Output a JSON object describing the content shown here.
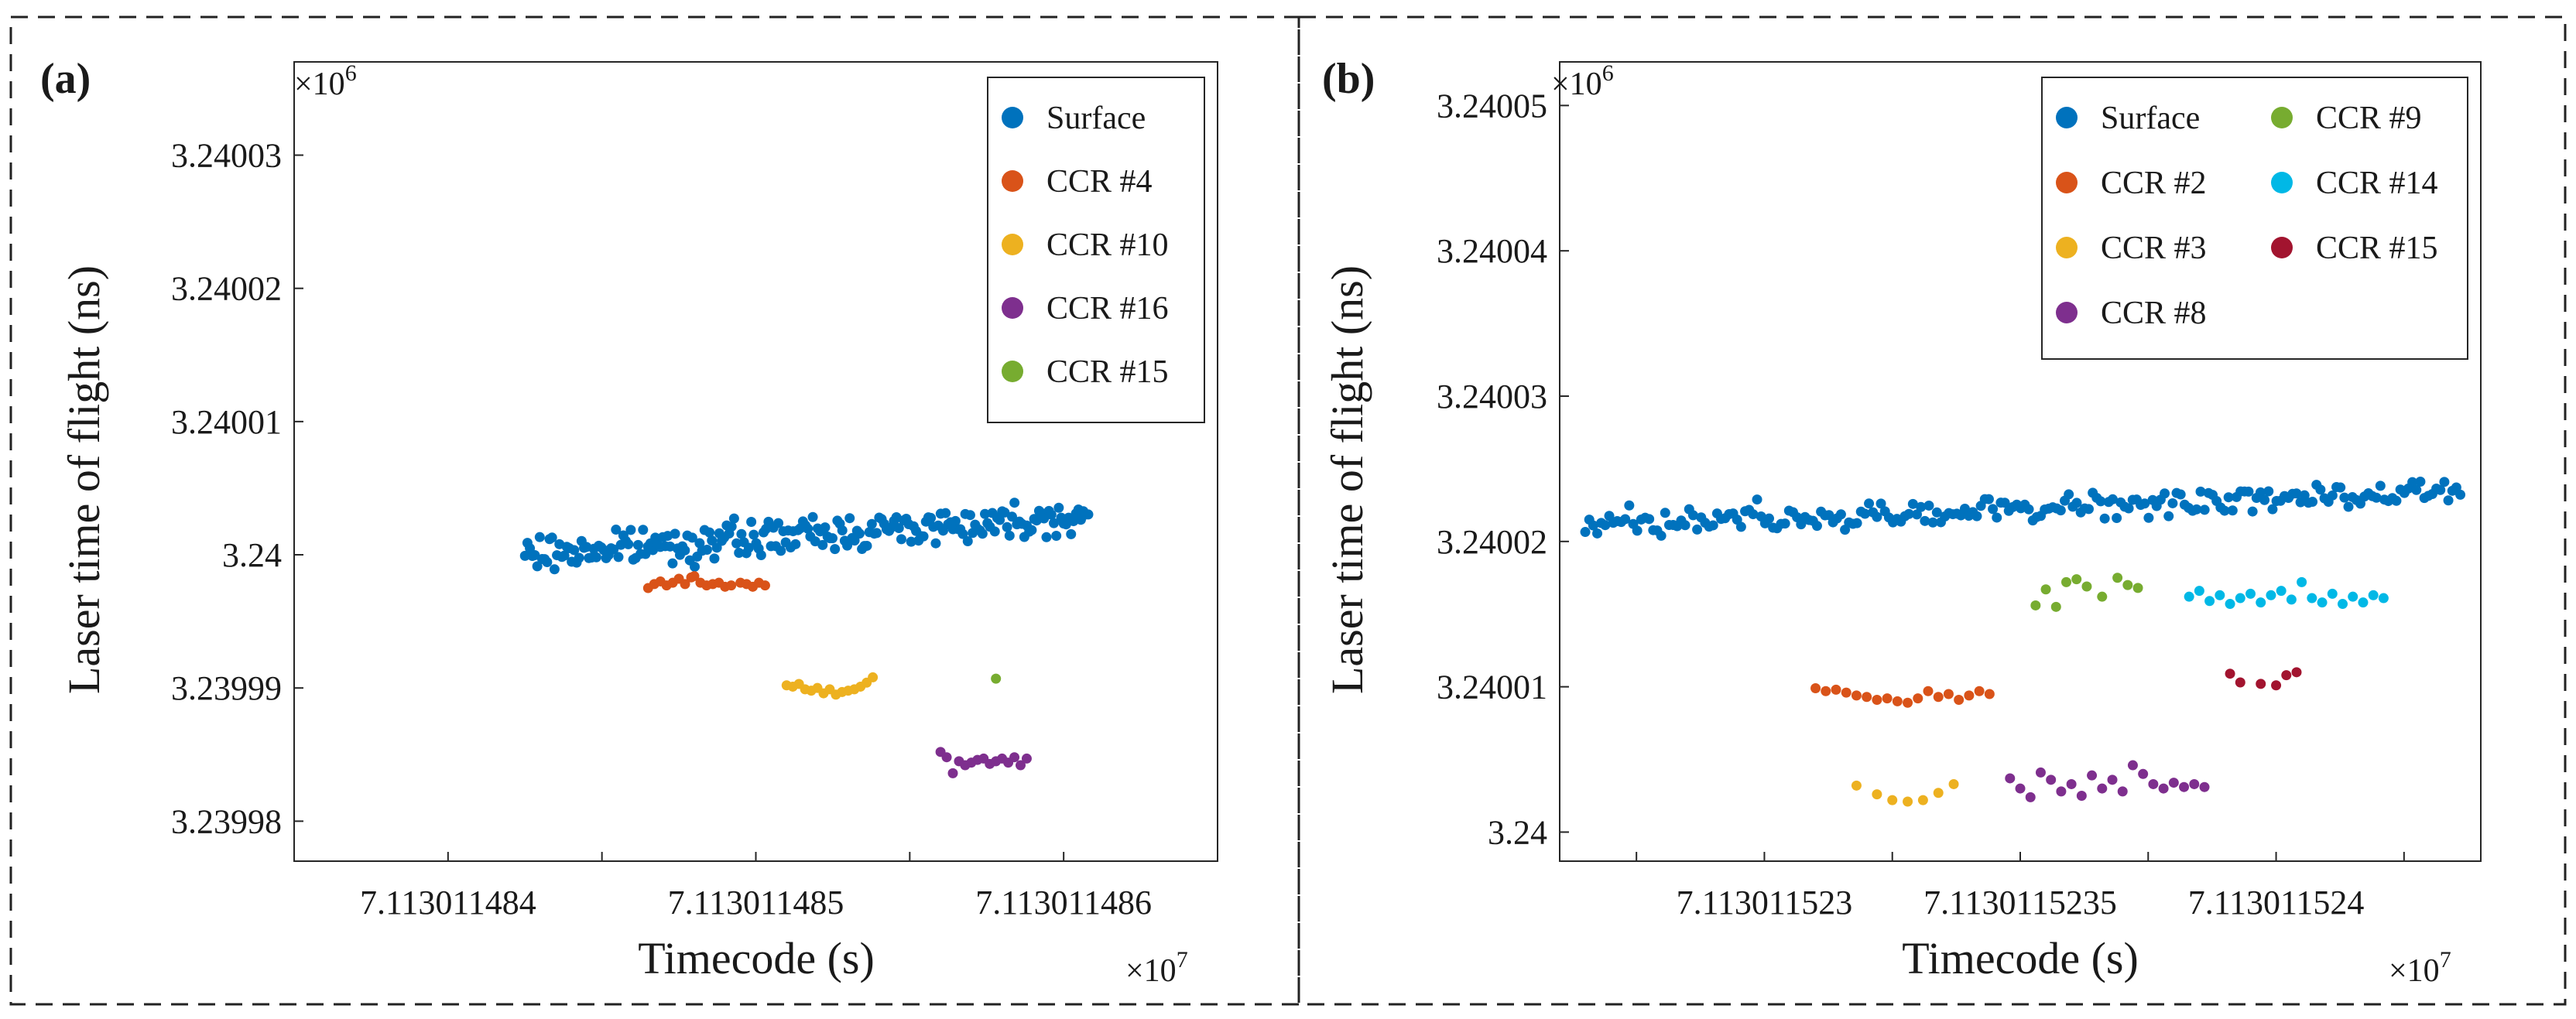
{
  "chart_data": [
    {
      "type": "scatter",
      "panel_label": "(a)",
      "xlabel": "Timecode (s)",
      "ylabel": "Laser time of flight (ns)",
      "x_exponent_label": "×10^7",
      "y_exponent_label": "×10^6",
      "x_ticks": [
        7.113011484,
        7.113011485,
        7.113011486
      ],
      "x_tick_labels": [
        "7.113011484",
        "7.113011485",
        "7.113011486"
      ],
      "y_ticks": [
        3.23998,
        3.23999,
        3.24,
        3.24001,
        3.24002,
        3.24003
      ],
      "y_tick_labels": [
        "3.23998",
        "3.23999",
        "3.24",
        "3.24001",
        "3.24002",
        "3.24003"
      ],
      "xlim": [
        7.1130114835,
        7.1130114865
      ],
      "ylim": [
        3.239977,
        3.240037
      ],
      "grid": false,
      "legend_position": "top-right",
      "series": [
        {
          "name": "Surface",
          "color": "#0072BD",
          "x_range": [
            7.11301148425,
            7.11301148608
          ],
          "y_start": 3.24,
          "y_end": 3.240003,
          "noise": 8e-07,
          "count": 230
        },
        {
          "name": "CCR #4",
          "color": "#D95319",
          "points": [
            [
              7.11301148465,
              3.2399975
            ],
            [
              7.11301148467,
              3.2399978
            ],
            [
              7.11301148469,
              3.239998
            ],
            [
              7.11301148471,
              3.2399977
            ],
            [
              7.11301148473,
              3.2399979
            ],
            [
              7.11301148475,
              3.2399982
            ],
            [
              7.11301148477,
              3.2399978
            ],
            [
              7.11301148479,
              3.2399983
            ],
            [
              7.1130114848,
              3.2399984
            ],
            [
              7.11301148482,
              3.2399979
            ],
            [
              7.11301148484,
              3.2399977
            ],
            [
              7.11301148486,
              3.2399978
            ],
            [
              7.11301148488,
              3.2399979
            ],
            [
              7.1130114849,
              3.2399976
            ],
            [
              7.11301148492,
              3.2399977
            ],
            [
              7.11301148495,
              3.2399979
            ],
            [
              7.11301148497,
              3.2399978
            ],
            [
              7.11301148499,
              3.2399976
            ],
            [
              7.11301148501,
              3.2399979
            ],
            [
              7.11301148503,
              3.2399977
            ]
          ]
        },
        {
          "name": "CCR #10",
          "color": "#EDB120",
          "points": [
            [
              7.1130114851,
              3.2399902
            ],
            [
              7.11301148512,
              3.2399901
            ],
            [
              7.11301148514,
              3.2399903
            ],
            [
              7.11301148516,
              3.2399899
            ],
            [
              7.11301148518,
              3.2399898
            ],
            [
              7.1130114852,
              3.23999
            ],
            [
              7.11301148522,
              3.2399896
            ],
            [
              7.11301148524,
              3.2399899
            ],
            [
              7.11301148526,
              3.2399895
            ],
            [
              7.11301148528,
              3.2399897
            ],
            [
              7.1130114853,
              3.2399898
            ],
            [
              7.11301148532,
              3.2399899
            ],
            [
              7.11301148534,
              3.2399901
            ],
            [
              7.11301148536,
              3.2399904
            ],
            [
              7.11301148538,
              3.2399908
            ]
          ]
        },
        {
          "name": "CCR #16",
          "color": "#7E2F8E",
          "points": [
            [
              7.1130114856,
              3.2399852
            ],
            [
              7.11301148562,
              3.2399848
            ],
            [
              7.11301148564,
              3.2399836
            ],
            [
              7.11301148566,
              3.2399845
            ],
            [
              7.11301148568,
              3.2399842
            ],
            [
              7.1130114857,
              3.2399844
            ],
            [
              7.11301148572,
              3.2399846
            ],
            [
              7.11301148574,
              3.2399847
            ],
            [
              7.11301148576,
              3.2399843
            ],
            [
              7.11301148578,
              3.2399845
            ],
            [
              7.1130114858,
              3.2399847
            ],
            [
              7.11301148582,
              3.2399844
            ],
            [
              7.11301148584,
              3.2399848
            ],
            [
              7.11301148586,
              3.2399842
            ],
            [
              7.11301148588,
              3.2399847
            ]
          ]
        },
        {
          "name": "CCR #15",
          "color": "#77AC30",
          "points": [
            [
              7.11301148578,
              3.2399907
            ]
          ]
        }
      ]
    },
    {
      "type": "scatter",
      "panel_label": "(b)",
      "xlabel": "Timecode (s)",
      "ylabel": "Laser time of flight (ns)",
      "x_exponent_label": "×10^7",
      "y_exponent_label": "×10^6",
      "x_ticks": [
        7.113011523,
        7.1130115235,
        7.113011524
      ],
      "x_tick_labels": [
        "7.113011523",
        "7.1130115235",
        "7.113011524"
      ],
      "y_ticks": [
        3.24,
        3.24001,
        3.24002,
        3.24003,
        3.24004,
        3.24005
      ],
      "y_tick_labels": [
        "3.24",
        "3.24001",
        "3.24002",
        "3.24003",
        "3.24004",
        "3.24005"
      ],
      "xlim": [
        7.1130115226,
        7.1130115244
      ],
      "ylim": [
        3.239998,
        3.240053
      ],
      "grid": false,
      "legend_position": "top-right",
      "series": [
        {
          "name": "Surface",
          "color": "#0072BD",
          "x_range": [
            7.11301152265,
            7.11301152436
          ],
          "y_start": 3.240021,
          "y_end": 3.2400235,
          "noise": 6e-07,
          "count": 220
        },
        {
          "name": "CCR #2",
          "color": "#D95319",
          "points": [
            [
              7.1130115231,
              3.2400099
            ],
            [
              7.11301152312,
              3.2400097
            ],
            [
              7.11301152314,
              3.2400098
            ],
            [
              7.11301152316,
              3.2400096
            ],
            [
              7.11301152318,
              3.2400094
            ],
            [
              7.1130115232,
              3.2400093
            ],
            [
              7.11301152322,
              3.2400091
            ],
            [
              7.11301152324,
              3.2400092
            ],
            [
              7.11301152326,
              3.240009
            ],
            [
              7.11301152328,
              3.2400089
            ],
            [
              7.1130115233,
              3.2400092
            ],
            [
              7.11301152332,
              3.2400097
            ],
            [
              7.11301152334,
              3.2400093
            ],
            [
              7.11301152336,
              3.2400095
            ],
            [
              7.11301152338,
              3.2400091
            ],
            [
              7.1130115234,
              3.2400094
            ],
            [
              7.11301152342,
              3.2400097
            ],
            [
              7.11301152344,
              3.2400095
            ]
          ]
        },
        {
          "name": "CCR #3",
          "color": "#EDB120",
          "points": [
            [
              7.11301152318,
              3.2400032
            ],
            [
              7.11301152322,
              3.2400026
            ],
            [
              7.11301152325,
              3.2400022
            ],
            [
              7.11301152328,
              3.2400021
            ],
            [
              7.11301152331,
              3.2400022
            ],
            [
              7.11301152334,
              3.2400027
            ],
            [
              7.11301152337,
              3.2400033
            ]
          ]
        },
        {
          "name": "CCR #8",
          "color": "#7E2F8E",
          "points": [
            [
              7.11301152348,
              3.2400037
            ],
            [
              7.1130115235,
              3.240003
            ],
            [
              7.11301152352,
              3.2400024
            ],
            [
              7.11301152354,
              3.2400041
            ],
            [
              7.11301152356,
              3.2400036
            ],
            [
              7.11301152358,
              3.2400028
            ],
            [
              7.1130115236,
              3.2400033
            ],
            [
              7.11301152362,
              3.2400025
            ],
            [
              7.11301152364,
              3.2400039
            ],
            [
              7.11301152366,
              3.240003
            ],
            [
              7.11301152368,
              3.2400036
            ],
            [
              7.1130115237,
              3.2400028
            ],
            [
              7.11301152372,
              3.2400046
            ],
            [
              7.11301152374,
              3.240004
            ],
            [
              7.11301152376,
              3.2400033
            ],
            [
              7.11301152378,
              3.240003
            ],
            [
              7.1130115238,
              3.2400034
            ],
            [
              7.11301152382,
              3.2400031
            ],
            [
              7.11301152384,
              3.2400033
            ],
            [
              7.11301152386,
              3.2400031
            ]
          ]
        },
        {
          "name": "CCR #9",
          "color": "#77AC30",
          "points": [
            [
              7.11301152353,
              3.2400156
            ],
            [
              7.11301152355,
              3.2400167
            ],
            [
              7.11301152357,
              3.2400155
            ],
            [
              7.11301152359,
              3.2400172
            ],
            [
              7.11301152361,
              3.2400174
            ],
            [
              7.11301152363,
              3.2400169
            ],
            [
              7.11301152366,
              3.2400162
            ],
            [
              7.11301152369,
              3.2400175
            ],
            [
              7.11301152371,
              3.240017
            ],
            [
              7.11301152373,
              3.2400168
            ]
          ]
        },
        {
          "name": "CCR #14",
          "color": "#00B8E6",
          "points": [
            [
              7.11301152383,
              3.2400162
            ],
            [
              7.11301152385,
              3.2400166
            ],
            [
              7.11301152387,
              3.2400159
            ],
            [
              7.11301152389,
              3.2400163
            ],
            [
              7.11301152391,
              3.2400157
            ],
            [
              7.11301152393,
              3.2400161
            ],
            [
              7.11301152395,
              3.2400164
            ],
            [
              7.11301152397,
              3.2400158
            ],
            [
              7.11301152399,
              3.2400163
            ],
            [
              7.11301152401,
              3.2400166
            ],
            [
              7.11301152403,
              3.240016
            ],
            [
              7.11301152405,
              3.2400172
            ],
            [
              7.11301152407,
              3.2400161
            ],
            [
              7.11301152409,
              3.2400158
            ],
            [
              7.11301152411,
              3.2400164
            ],
            [
              7.11301152413,
              3.2400157
            ],
            [
              7.11301152415,
              3.2400162
            ],
            [
              7.11301152417,
              3.2400158
            ],
            [
              7.11301152419,
              3.2400163
            ],
            [
              7.11301152421,
              3.2400161
            ]
          ]
        },
        {
          "name": "CCR #15",
          "color": "#A2142F",
          "points": [
            [
              7.11301152391,
              3.2400109
            ],
            [
              7.11301152393,
              3.2400103
            ],
            [
              7.11301152397,
              3.2400102
            ],
            [
              7.113011524,
              3.2400101
            ],
            [
              7.11301152402,
              3.2400108
            ],
            [
              7.11301152404,
              3.240011
            ]
          ]
        }
      ]
    }
  ]
}
